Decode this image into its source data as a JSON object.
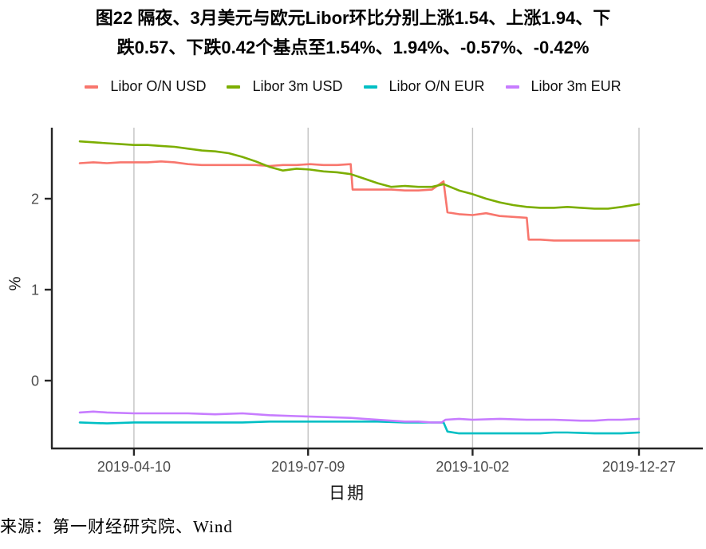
{
  "title": {
    "line1": "图22 隔夜、3月美元与欧元Libor环比分别上涨1.54、上涨1.94、下",
    "line2": "跌0.57、下跌0.42个基点至1.54%、1.94%、-0.57%、-0.42%"
  },
  "source": "来源：第一财经研究院、Wind",
  "chart_data": {
    "type": "line",
    "title": "图22 隔夜、3月美元与欧元Libor环比分别上涨1.54、上涨1.94、下跌0.57、下跌0.42个基点至1.54%、1.94%、-0.57%、-0.42%",
    "xlabel": "日期",
    "ylabel": "%",
    "xlim": [
      "2019-03-13",
      "2019-12-27"
    ],
    "ylim": [
      -0.75,
      2.78
    ],
    "x_ticks": [
      "2019-04-10",
      "2019-07-09",
      "2019-10-02",
      "2019-12-27"
    ],
    "y_ticks": [
      0,
      1,
      2
    ],
    "grid": "vertical-major-only",
    "legend_position": "top",
    "axis_color": "#262626",
    "grid_color": "#c3c3c3",
    "tick_label_color": "#4d4d4d",
    "series": [
      {
        "name": "Libor O/N USD",
        "color": "#F8766D",
        "points": [
          [
            "2019-03-13",
            2.39
          ],
          [
            "2019-03-20",
            2.4
          ],
          [
            "2019-03-27",
            2.39
          ],
          [
            "2019-04-03",
            2.4
          ],
          [
            "2019-04-10",
            2.4
          ],
          [
            "2019-04-17",
            2.4
          ],
          [
            "2019-04-24",
            2.41
          ],
          [
            "2019-05-01",
            2.4
          ],
          [
            "2019-05-08",
            2.38
          ],
          [
            "2019-05-15",
            2.37
          ],
          [
            "2019-05-22",
            2.37
          ],
          [
            "2019-05-29",
            2.37
          ],
          [
            "2019-06-05",
            2.37
          ],
          [
            "2019-06-12",
            2.37
          ],
          [
            "2019-06-19",
            2.36
          ],
          [
            "2019-06-26",
            2.37
          ],
          [
            "2019-07-03",
            2.37
          ],
          [
            "2019-07-10",
            2.38
          ],
          [
            "2019-07-17",
            2.37
          ],
          [
            "2019-07-24",
            2.37
          ],
          [
            "2019-07-31",
            2.38
          ],
          [
            "2019-08-01",
            2.1
          ],
          [
            "2019-08-07",
            2.1
          ],
          [
            "2019-08-14",
            2.1
          ],
          [
            "2019-08-21",
            2.1
          ],
          [
            "2019-08-28",
            2.09
          ],
          [
            "2019-09-04",
            2.09
          ],
          [
            "2019-09-11",
            2.1
          ],
          [
            "2019-09-17",
            2.19
          ],
          [
            "2019-09-19",
            1.85
          ],
          [
            "2019-09-25",
            1.83
          ],
          [
            "2019-10-02",
            1.82
          ],
          [
            "2019-10-09",
            1.84
          ],
          [
            "2019-10-16",
            1.81
          ],
          [
            "2019-10-23",
            1.8
          ],
          [
            "2019-10-30",
            1.79
          ],
          [
            "2019-10-31",
            1.55
          ],
          [
            "2019-11-06",
            1.55
          ],
          [
            "2019-11-13",
            1.54
          ],
          [
            "2019-11-20",
            1.54
          ],
          [
            "2019-11-27",
            1.54
          ],
          [
            "2019-12-04",
            1.54
          ],
          [
            "2019-12-11",
            1.54
          ],
          [
            "2019-12-18",
            1.54
          ],
          [
            "2019-12-27",
            1.54
          ]
        ]
      },
      {
        "name": "Libor 3m USD",
        "color": "#7CAE00",
        "points": [
          [
            "2019-03-13",
            2.63
          ],
          [
            "2019-03-20",
            2.62
          ],
          [
            "2019-03-27",
            2.61
          ],
          [
            "2019-04-03",
            2.6
          ],
          [
            "2019-04-10",
            2.59
          ],
          [
            "2019-04-17",
            2.59
          ],
          [
            "2019-04-24",
            2.58
          ],
          [
            "2019-05-01",
            2.57
          ],
          [
            "2019-05-08",
            2.55
          ],
          [
            "2019-05-15",
            2.53
          ],
          [
            "2019-05-22",
            2.52
          ],
          [
            "2019-05-29",
            2.5
          ],
          [
            "2019-06-05",
            2.46
          ],
          [
            "2019-06-12",
            2.41
          ],
          [
            "2019-06-19",
            2.35
          ],
          [
            "2019-06-26",
            2.31
          ],
          [
            "2019-07-03",
            2.33
          ],
          [
            "2019-07-10",
            2.32
          ],
          [
            "2019-07-17",
            2.3
          ],
          [
            "2019-07-24",
            2.29
          ],
          [
            "2019-07-31",
            2.27
          ],
          [
            "2019-08-07",
            2.22
          ],
          [
            "2019-08-14",
            2.17
          ],
          [
            "2019-08-21",
            2.13
          ],
          [
            "2019-08-28",
            2.14
          ],
          [
            "2019-09-04",
            2.13
          ],
          [
            "2019-09-11",
            2.13
          ],
          [
            "2019-09-17",
            2.16
          ],
          [
            "2019-09-25",
            2.09
          ],
          [
            "2019-10-02",
            2.05
          ],
          [
            "2019-10-09",
            2.0
          ],
          [
            "2019-10-16",
            1.96
          ],
          [
            "2019-10-23",
            1.93
          ],
          [
            "2019-10-30",
            1.91
          ],
          [
            "2019-11-06",
            1.9
          ],
          [
            "2019-11-13",
            1.9
          ],
          [
            "2019-11-20",
            1.91
          ],
          [
            "2019-11-27",
            1.9
          ],
          [
            "2019-12-04",
            1.89
          ],
          [
            "2019-12-11",
            1.89
          ],
          [
            "2019-12-18",
            1.91
          ],
          [
            "2019-12-27",
            1.94
          ]
        ]
      },
      {
        "name": "Libor O/N EUR",
        "color": "#00BFC4",
        "points": [
          [
            "2019-03-13",
            -0.46
          ],
          [
            "2019-03-27",
            -0.47
          ],
          [
            "2019-04-10",
            -0.46
          ],
          [
            "2019-04-24",
            -0.46
          ],
          [
            "2019-05-08",
            -0.46
          ],
          [
            "2019-05-22",
            -0.46
          ],
          [
            "2019-06-05",
            -0.46
          ],
          [
            "2019-06-19",
            -0.45
          ],
          [
            "2019-07-03",
            -0.45
          ],
          [
            "2019-07-17",
            -0.45
          ],
          [
            "2019-07-31",
            -0.45
          ],
          [
            "2019-08-14",
            -0.45
          ],
          [
            "2019-08-28",
            -0.46
          ],
          [
            "2019-09-11",
            -0.46
          ],
          [
            "2019-09-17",
            -0.46
          ],
          [
            "2019-09-19",
            -0.56
          ],
          [
            "2019-09-25",
            -0.58
          ],
          [
            "2019-10-09",
            -0.58
          ],
          [
            "2019-10-23",
            -0.58
          ],
          [
            "2019-11-06",
            -0.58
          ],
          [
            "2019-11-13",
            -0.57
          ],
          [
            "2019-11-20",
            -0.57
          ],
          [
            "2019-12-04",
            -0.58
          ],
          [
            "2019-12-18",
            -0.58
          ],
          [
            "2019-12-27",
            -0.57
          ]
        ]
      },
      {
        "name": "Libor 3m EUR",
        "color": "#C77CFF",
        "points": [
          [
            "2019-03-13",
            -0.35
          ],
          [
            "2019-03-20",
            -0.34
          ],
          [
            "2019-03-27",
            -0.35
          ],
          [
            "2019-04-10",
            -0.36
          ],
          [
            "2019-04-24",
            -0.36
          ],
          [
            "2019-05-08",
            -0.36
          ],
          [
            "2019-05-22",
            -0.37
          ],
          [
            "2019-06-05",
            -0.36
          ],
          [
            "2019-06-19",
            -0.38
          ],
          [
            "2019-07-03",
            -0.39
          ],
          [
            "2019-07-17",
            -0.4
          ],
          [
            "2019-07-31",
            -0.41
          ],
          [
            "2019-08-07",
            -0.42
          ],
          [
            "2019-08-14",
            -0.43
          ],
          [
            "2019-08-21",
            -0.44
          ],
          [
            "2019-08-28",
            -0.45
          ],
          [
            "2019-09-04",
            -0.45
          ],
          [
            "2019-09-11",
            -0.46
          ],
          [
            "2019-09-16",
            -0.46
          ],
          [
            "2019-09-18",
            -0.43
          ],
          [
            "2019-09-25",
            -0.42
          ],
          [
            "2019-10-02",
            -0.43
          ],
          [
            "2019-10-16",
            -0.42
          ],
          [
            "2019-10-30",
            -0.43
          ],
          [
            "2019-11-13",
            -0.43
          ],
          [
            "2019-11-27",
            -0.44
          ],
          [
            "2019-12-04",
            -0.44
          ],
          [
            "2019-12-11",
            -0.43
          ],
          [
            "2019-12-18",
            -0.43
          ],
          [
            "2019-12-27",
            -0.42
          ]
        ]
      }
    ]
  }
}
